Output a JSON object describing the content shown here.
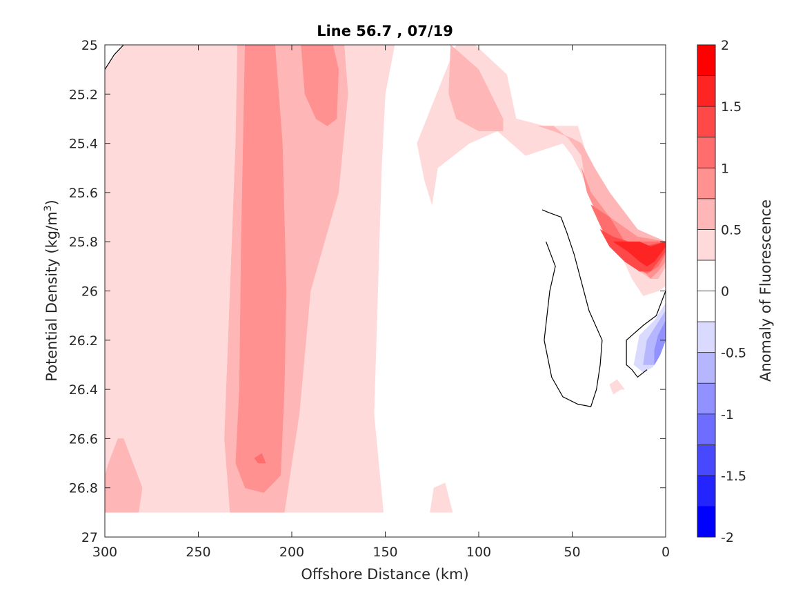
{
  "chart_data": {
    "type": "contour",
    "title": "Line 56.7 , 07/19",
    "xlabel": "Offshore Distance (km)",
    "ylabel_main": "Potential Density (kg/m",
    "ylabel_sup": "3",
    "ylabel_close": ")",
    "xlim": [
      300,
      0
    ],
    "ylim": [
      25,
      27
    ],
    "x_ticks": [
      300,
      250,
      200,
      150,
      100,
      50,
      0
    ],
    "x_tick_labels": [
      "300",
      "250",
      "200",
      "150",
      "100",
      "50",
      "0"
    ],
    "y_ticks": [
      25,
      25.2,
      25.4,
      25.6,
      25.8,
      26,
      26.2,
      26.4,
      26.6,
      26.8,
      27
    ],
    "y_tick_labels": [
      "25",
      "25.2",
      "25.4",
      "25.6",
      "25.8",
      "26",
      "26.2",
      "26.4",
      "26.6",
      "26.8",
      "27"
    ],
    "grid": false,
    "levels": [
      -2,
      -1.75,
      -1.5,
      -1.25,
      -1,
      -0.75,
      -0.5,
      -0.25,
      0,
      0.25,
      0.5,
      0.75,
      1,
      1.25,
      1.5,
      1.75,
      2
    ],
    "level_colors": [
      "#0000ff",
      "#2424ff",
      "#4848ff",
      "#6d6dff",
      "#9191ff",
      "#b6b6ff",
      "#dadaff",
      "#ffffff",
      "#ffffff",
      "#ffdada",
      "#ffb6b6",
      "#ff9191",
      "#ff6d6d",
      "#ff4848",
      "#ff2424",
      "#ff0000"
    ],
    "colorbar": {
      "label": "Anomaly of Fluorescence",
      "range": [
        -2,
        2
      ],
      "ticks": [
        2,
        1.5,
        1,
        0.5,
        0,
        -0.5,
        -1,
        -1.5,
        -2
      ],
      "tick_labels": [
        "2",
        "1.5",
        "1",
        "0.5",
        "0",
        "-0.5",
        "-1",
        "-1.5",
        "-2"
      ]
    },
    "regions": [
      {
        "level": 0.25,
        "color": "#ffdada",
        "points": [
          [
            300,
            26.9
          ],
          [
            300,
            25.1
          ],
          [
            290,
            25
          ],
          [
            145,
            25
          ],
          [
            150,
            25.2
          ],
          [
            152,
            25.5
          ],
          [
            154,
            26.0
          ],
          [
            156,
            26.5
          ],
          [
            151,
            26.9
          ]
        ]
      },
      {
        "level": 0.25,
        "color": "#ffdada",
        "points": [
          [
            112,
            25
          ],
          [
            102,
            25
          ],
          [
            85,
            25.12
          ],
          [
            80,
            25.3
          ],
          [
            65,
            25.33
          ],
          [
            47,
            25.33
          ],
          [
            38,
            25.55
          ],
          [
            30,
            25.7
          ],
          [
            24,
            25.85
          ],
          [
            18,
            25.95
          ],
          [
            12,
            26.02
          ],
          [
            4,
            26.0
          ],
          [
            0,
            25.98
          ],
          [
            0,
            25.8
          ],
          [
            12,
            25.8
          ],
          [
            18,
            25.8
          ],
          [
            25,
            25.7
          ],
          [
            40,
            25.6
          ],
          [
            50,
            25.45
          ],
          [
            55,
            25.4
          ],
          [
            75,
            25.45
          ],
          [
            90,
            25.35
          ],
          [
            105,
            25.4
          ],
          [
            122,
            25.5
          ],
          [
            125,
            25.65
          ],
          [
            129,
            25.55
          ],
          [
            133,
            25.4
          ]
        ]
      },
      {
        "level": 0.25,
        "color": "#ffdada",
        "points": [
          [
            126,
            26.9
          ],
          [
            124,
            26.8
          ],
          [
            118,
            26.78
          ],
          [
            114,
            26.9
          ]
        ]
      },
      {
        "level": 0.25,
        "color": "#ffdada",
        "points": [
          [
            30,
            26.38
          ],
          [
            28,
            26.42
          ],
          [
            24,
            26.4
          ],
          [
            22,
            26.4
          ],
          [
            26,
            26.36
          ]
        ]
      },
      {
        "level": 0.5,
        "color": "#ffb6b6",
        "points": [
          [
            282,
            26.9
          ],
          [
            280,
            26.8
          ],
          [
            285,
            26.7
          ],
          [
            290,
            26.6
          ],
          [
            293,
            26.6
          ],
          [
            298,
            26.7
          ],
          [
            300,
            26.75
          ],
          [
            300,
            26.9
          ]
        ]
      },
      {
        "level": 0.5,
        "color": "#ffb6b6",
        "points": [
          [
            229,
            25
          ],
          [
            230,
            25.4
          ],
          [
            233,
            26.0
          ],
          [
            236,
            26.6
          ],
          [
            233,
            26.9
          ],
          [
            204,
            26.9
          ],
          [
            196,
            26.5
          ],
          [
            190,
            26.0
          ],
          [
            175,
            25.6
          ],
          [
            170,
            25.2
          ],
          [
            172,
            25
          ]
        ]
      },
      {
        "level": 0.5,
        "color": "#ffb6b6",
        "points": [
          [
            115,
            25
          ],
          [
            100,
            25.1
          ],
          [
            87,
            25.3
          ],
          [
            87,
            25.35
          ],
          [
            100,
            25.35
          ],
          [
            112,
            25.3
          ],
          [
            116,
            25.2
          ]
        ]
      },
      {
        "level": 0.5,
        "color": "#ffb6b6",
        "points": [
          [
            68,
            25.33
          ],
          [
            60,
            25.33
          ],
          [
            52,
            25.38
          ],
          [
            45,
            25.45
          ],
          [
            42,
            25.6
          ],
          [
            35,
            25.7
          ],
          [
            28,
            25.78
          ],
          [
            20,
            25.85
          ],
          [
            14,
            25.92
          ],
          [
            8,
            25.95
          ],
          [
            4,
            25.95
          ],
          [
            0,
            25.9
          ],
          [
            0,
            25.8
          ],
          [
            15,
            25.75
          ],
          [
            20,
            25.7
          ],
          [
            30,
            25.6
          ],
          [
            38,
            25.5
          ],
          [
            45,
            25.4
          ],
          [
            50,
            25.38
          ],
          [
            60,
            25.35
          ]
        ]
      },
      {
        "level": 0.75,
        "color": "#ff9191",
        "points": [
          [
            225,
            25
          ],
          [
            227,
            25.8
          ],
          [
            228,
            26.4
          ],
          [
            230,
            26.7
          ],
          [
            225,
            26.8
          ],
          [
            215,
            26.82
          ],
          [
            206,
            26.75
          ],
          [
            204,
            26.4
          ],
          [
            203,
            26.0
          ],
          [
            205,
            25.4
          ],
          [
            209,
            25
          ]
        ]
      },
      {
        "level": 0.75,
        "color": "#ff9191",
        "points": [
          [
            195,
            25
          ],
          [
            193,
            25.2
          ],
          [
            187,
            25.3
          ],
          [
            181,
            25.33
          ],
          [
            176,
            25.3
          ],
          [
            175,
            25.1
          ],
          [
            178,
            25
          ]
        ]
      },
      {
        "level": 0.75,
        "color": "#ff9191",
        "points": [
          [
            45,
            25.5
          ],
          [
            42,
            25.6
          ],
          [
            36,
            25.7
          ],
          [
            30,
            25.8
          ],
          [
            22,
            25.85
          ],
          [
            14,
            25.9
          ],
          [
            8,
            25.95
          ],
          [
            4,
            25.92
          ],
          [
            0,
            25.88
          ],
          [
            0,
            25.8
          ],
          [
            15,
            25.78
          ],
          [
            30,
            25.7
          ],
          [
            40,
            25.6
          ]
        ]
      },
      {
        "level": 1.0,
        "color": "#ff6d6d",
        "points": [
          [
            220,
            26.68
          ],
          [
            218,
            26.7
          ],
          [
            214,
            26.7
          ],
          [
            216,
            26.66
          ]
        ]
      },
      {
        "level": 1.0,
        "color": "#ff6d6d",
        "points": [
          [
            40,
            25.65
          ],
          [
            34,
            25.75
          ],
          [
            26,
            25.85
          ],
          [
            18,
            25.9
          ],
          [
            10,
            25.93
          ],
          [
            4,
            25.9
          ],
          [
            0,
            25.85
          ],
          [
            0,
            25.8
          ],
          [
            12,
            25.8
          ],
          [
            22,
            25.8
          ],
          [
            30,
            25.7
          ]
        ]
      },
      {
        "level": 1.25,
        "color": "#ff4848",
        "points": [
          [
            35,
            25.75
          ],
          [
            30,
            25.82
          ],
          [
            22,
            25.88
          ],
          [
            14,
            25.92
          ],
          [
            8,
            25.92
          ],
          [
            4,
            25.88
          ],
          [
            0,
            25.84
          ],
          [
            0,
            25.8
          ],
          [
            12,
            25.82
          ],
          [
            20,
            25.8
          ],
          [
            28,
            25.78
          ]
        ]
      },
      {
        "level": 1.5,
        "color": "#ff2424",
        "points": [
          [
            28,
            25.8
          ],
          [
            20,
            25.84
          ],
          [
            14,
            25.88
          ],
          [
            10,
            25.9
          ],
          [
            6,
            25.88
          ],
          [
            2,
            25.84
          ],
          [
            0,
            25.82
          ],
          [
            0,
            25.8
          ],
          [
            8,
            25.82
          ],
          [
            14,
            25.8
          ],
          [
            22,
            25.8
          ]
        ]
      },
      {
        "level": -0.25,
        "color": "#dadaff",
        "points": [
          [
            0,
            26.05
          ],
          [
            6,
            26.12
          ],
          [
            14,
            26.18
          ],
          [
            17,
            26.3
          ],
          [
            12,
            26.33
          ],
          [
            7,
            26.31
          ],
          [
            3,
            26.26
          ],
          [
            0,
            26.18
          ]
        ]
      },
      {
        "level": -0.5,
        "color": "#b6b6ff",
        "points": [
          [
            0,
            26.08
          ],
          [
            5,
            26.14
          ],
          [
            10,
            26.2
          ],
          [
            12,
            26.3
          ],
          [
            6,
            26.3
          ],
          [
            2,
            26.22
          ],
          [
            0,
            26.15
          ]
        ]
      },
      {
        "level": -0.75,
        "color": "#9191ff",
        "points": [
          [
            0,
            26.12
          ],
          [
            4,
            26.18
          ],
          [
            6,
            26.24
          ],
          [
            6,
            26.3
          ],
          [
            3,
            26.26
          ],
          [
            0,
            26.2
          ]
        ]
      }
    ],
    "zero_contours": [
      [
        [
          300,
          25.1
        ],
        [
          295,
          25.04
        ],
        [
          290,
          25
        ]
      ],
      [
        [
          66,
          25.67
        ],
        [
          63,
          25.68
        ],
        [
          56,
          25.7
        ],
        [
          53,
          25.76
        ],
        [
          49,
          25.85
        ],
        [
          41,
          26.08
        ],
        [
          34,
          26.2
        ],
        [
          35,
          26.3
        ],
        [
          37,
          26.4
        ],
        [
          40,
          26.47
        ],
        [
          47,
          26.46
        ],
        [
          55,
          26.43
        ],
        [
          61,
          26.35
        ],
        [
          65,
          26.2
        ],
        [
          62,
          26.0
        ],
        [
          59,
          25.9
        ],
        [
          64,
          25.8
        ]
      ],
      [
        [
          0,
          26.0
        ],
        [
          5,
          26.1
        ],
        [
          12,
          26.14
        ],
        [
          18,
          26.18
        ],
        [
          21,
          26.2
        ],
        [
          21,
          26.3
        ],
        [
          18,
          26.32
        ],
        [
          15,
          26.35
        ],
        [
          10,
          26.32
        ]
      ]
    ]
  }
}
